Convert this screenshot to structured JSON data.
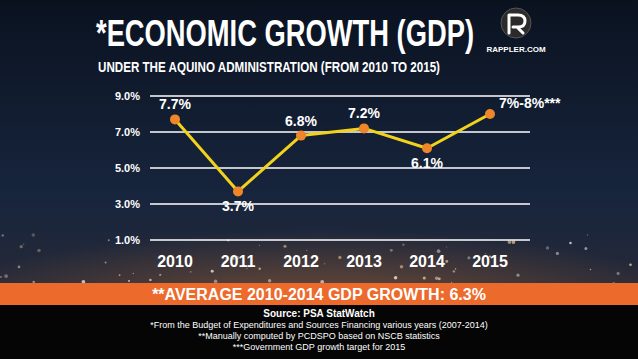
{
  "chart_data": {
    "type": "line",
    "title": "*ECONOMIC GROWTH (GDP)",
    "subtitle": "UNDER THE AQUINO ADMINISTRATION (FROM 2010 TO 2015)",
    "categories": [
      "2010",
      "2011",
      "2012",
      "2013",
      "2014",
      "2015"
    ],
    "values": [
      7.7,
      3.7,
      6.8,
      7.2,
      6.1,
      8
    ],
    "value_labels": [
      "7.7%",
      "3.7%",
      "6.8%",
      "7.2%",
      "6.1%",
      "7%-8%***"
    ],
    "color": "#f2d21b",
    "marker": "circle",
    "ylim": [
      1,
      9
    ],
    "yticks": [
      {
        "value": 1,
        "label": "1.0%"
      },
      {
        "value": 3,
        "label": "3.0%"
      },
      {
        "value": 5,
        "label": "5.0%"
      },
      {
        "value": 7,
        "label": "7.0%"
      },
      {
        "value": 9,
        "label": "9.0%"
      }
    ],
    "grid": true,
    "data_labels": true,
    "annotations": [
      "RAPPLER.COM",
      "**AVERAGE 2010-2014 GDP GROWTH: 6.3%",
      "Source: PSA StatWatch",
      "*From the Budget of Expenditures and Sources Financing various years (2007-2014)",
      "**Manually computed by PCDSPO based on NSCB statistics",
      "***Government GDP growth target for 2015"
    ]
  }
}
